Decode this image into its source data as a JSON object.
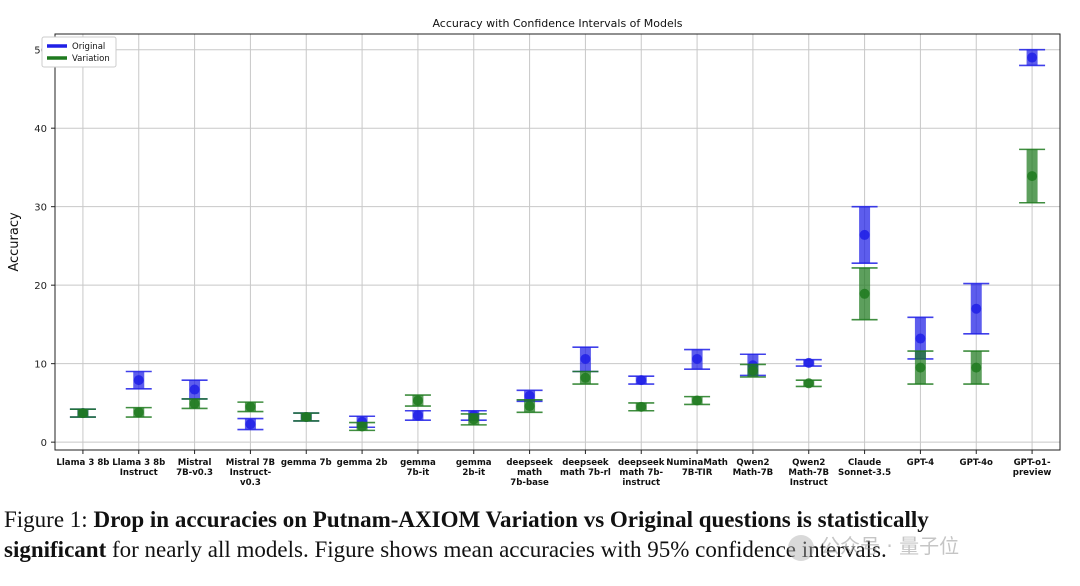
{
  "chart_data": {
    "type": "errorbar",
    "title": "Accuracy with Confidence Intervals of Models",
    "ylabel": "Accuracy",
    "xlabel": "",
    "ylim": [
      -1,
      52
    ],
    "yticks": [
      0,
      10,
      20,
      30,
      40,
      50
    ],
    "grid": true,
    "legend_position": "top-left",
    "categories": [
      [
        "Llama 3 8b"
      ],
      [
        "Llama 3 8b",
        "Instruct"
      ],
      [
        "Mistral",
        "7B-v0.3"
      ],
      [
        "Mistral 7B",
        "Instruct-",
        "v0.3"
      ],
      [
        "gemma 7b"
      ],
      [
        "gemma 2b"
      ],
      [
        "gemma",
        "7b-it"
      ],
      [
        "gemma",
        "2b-it"
      ],
      [
        "deepseek",
        "math",
        "7b-base"
      ],
      [
        "deepseek",
        "math 7b-rl"
      ],
      [
        "deepseek",
        "math 7b-",
        "instruct"
      ],
      [
        "NuminaMath",
        "7B-TIR"
      ],
      [
        "Qwen2",
        "Math-7B"
      ],
      [
        "Qwen2",
        "Math-7B",
        "Instruct"
      ],
      [
        "Claude",
        "Sonnet-3.5"
      ],
      [
        "GPT-4"
      ],
      [
        "GPT-4o"
      ],
      [
        "GPT-o1-",
        "preview"
      ]
    ],
    "series": [
      {
        "name": "Original",
        "color": "#1f1fe6",
        "mean": [
          3.7,
          7.9,
          6.7,
          2.3,
          3.2,
          2.6,
          3.4,
          3.4,
          5.9,
          10.6,
          7.9,
          10.6,
          9.8,
          10.1,
          26.4,
          13.2,
          17.0,
          49.0
        ],
        "lower": [
          3.2,
          6.8,
          5.5,
          1.6,
          2.7,
          1.9,
          2.8,
          2.8,
          5.2,
          9.0,
          7.4,
          9.3,
          8.5,
          9.7,
          22.8,
          10.6,
          13.8,
          48.0
        ],
        "upper": [
          4.2,
          9.0,
          7.9,
          3.0,
          3.7,
          3.3,
          4.0,
          4.0,
          6.6,
          12.1,
          8.4,
          11.8,
          11.2,
          10.5,
          30.0,
          15.9,
          20.2,
          50.0
        ]
      },
      {
        "name": "Variation",
        "color": "#1e7a1e",
        "mean": [
          3.7,
          3.8,
          4.9,
          4.5,
          3.2,
          2.0,
          5.3,
          2.9,
          4.6,
          8.2,
          4.5,
          5.3,
          9.1,
          7.5,
          18.9,
          9.5,
          9.5,
          33.9
        ],
        "lower": [
          3.2,
          3.2,
          4.3,
          3.9,
          2.7,
          1.5,
          4.6,
          2.2,
          3.8,
          7.4,
          4.0,
          4.8,
          8.3,
          7.1,
          15.6,
          7.4,
          7.4,
          30.5
        ],
        "upper": [
          4.2,
          4.4,
          5.5,
          5.1,
          3.7,
          2.5,
          6.0,
          3.6,
          5.4,
          9.0,
          5.0,
          5.8,
          9.9,
          7.9,
          22.2,
          11.6,
          11.6,
          37.3
        ]
      }
    ]
  },
  "caption": {
    "prefix": "Figure 1: ",
    "bold1": "Drop in accuracies on Putnam-AXIOM Variation vs Original questions is statistically",
    "bold2": "significant",
    "rest": " for nearly all models. Figure shows mean accuracies with 95% confidence intervals."
  },
  "watermark": "公众号 · 量子位"
}
